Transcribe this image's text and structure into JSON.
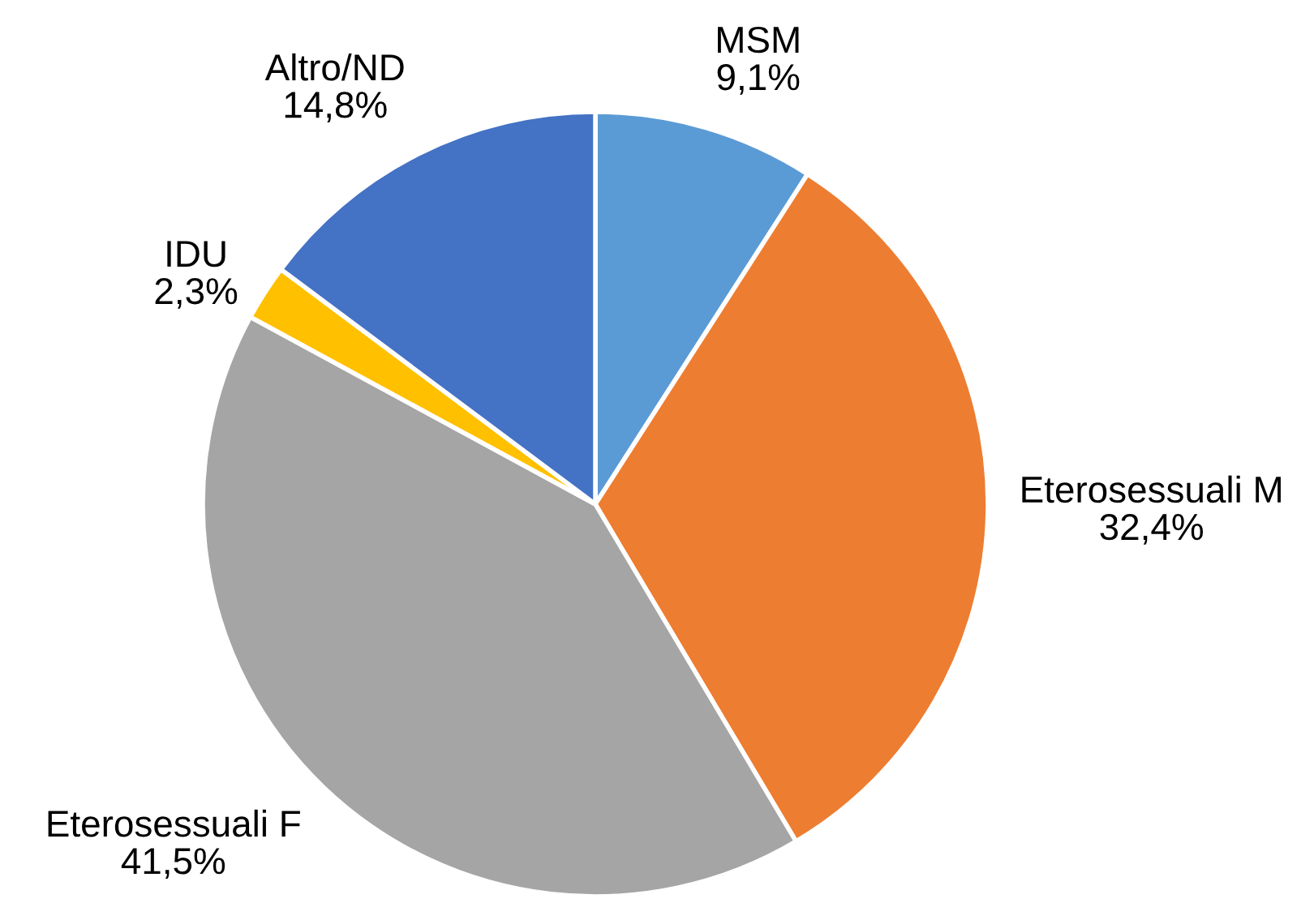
{
  "chart_data": {
    "type": "pie",
    "categories": [
      "MSM",
      "Eterosessuali M",
      "Eterosessuali F",
      "IDU",
      "Altro/ND"
    ],
    "values": [
      9.1,
      32.4,
      41.5,
      2.3,
      14.8
    ],
    "colors": [
      "#5b9bd5",
      "#ed7d31",
      "#a5a5a5",
      "#ffc000",
      "#4472c4"
    ],
    "value_labels": [
      "9,1%",
      "32,4%",
      "41,5%",
      "2,3%",
      "14,8%"
    ]
  }
}
